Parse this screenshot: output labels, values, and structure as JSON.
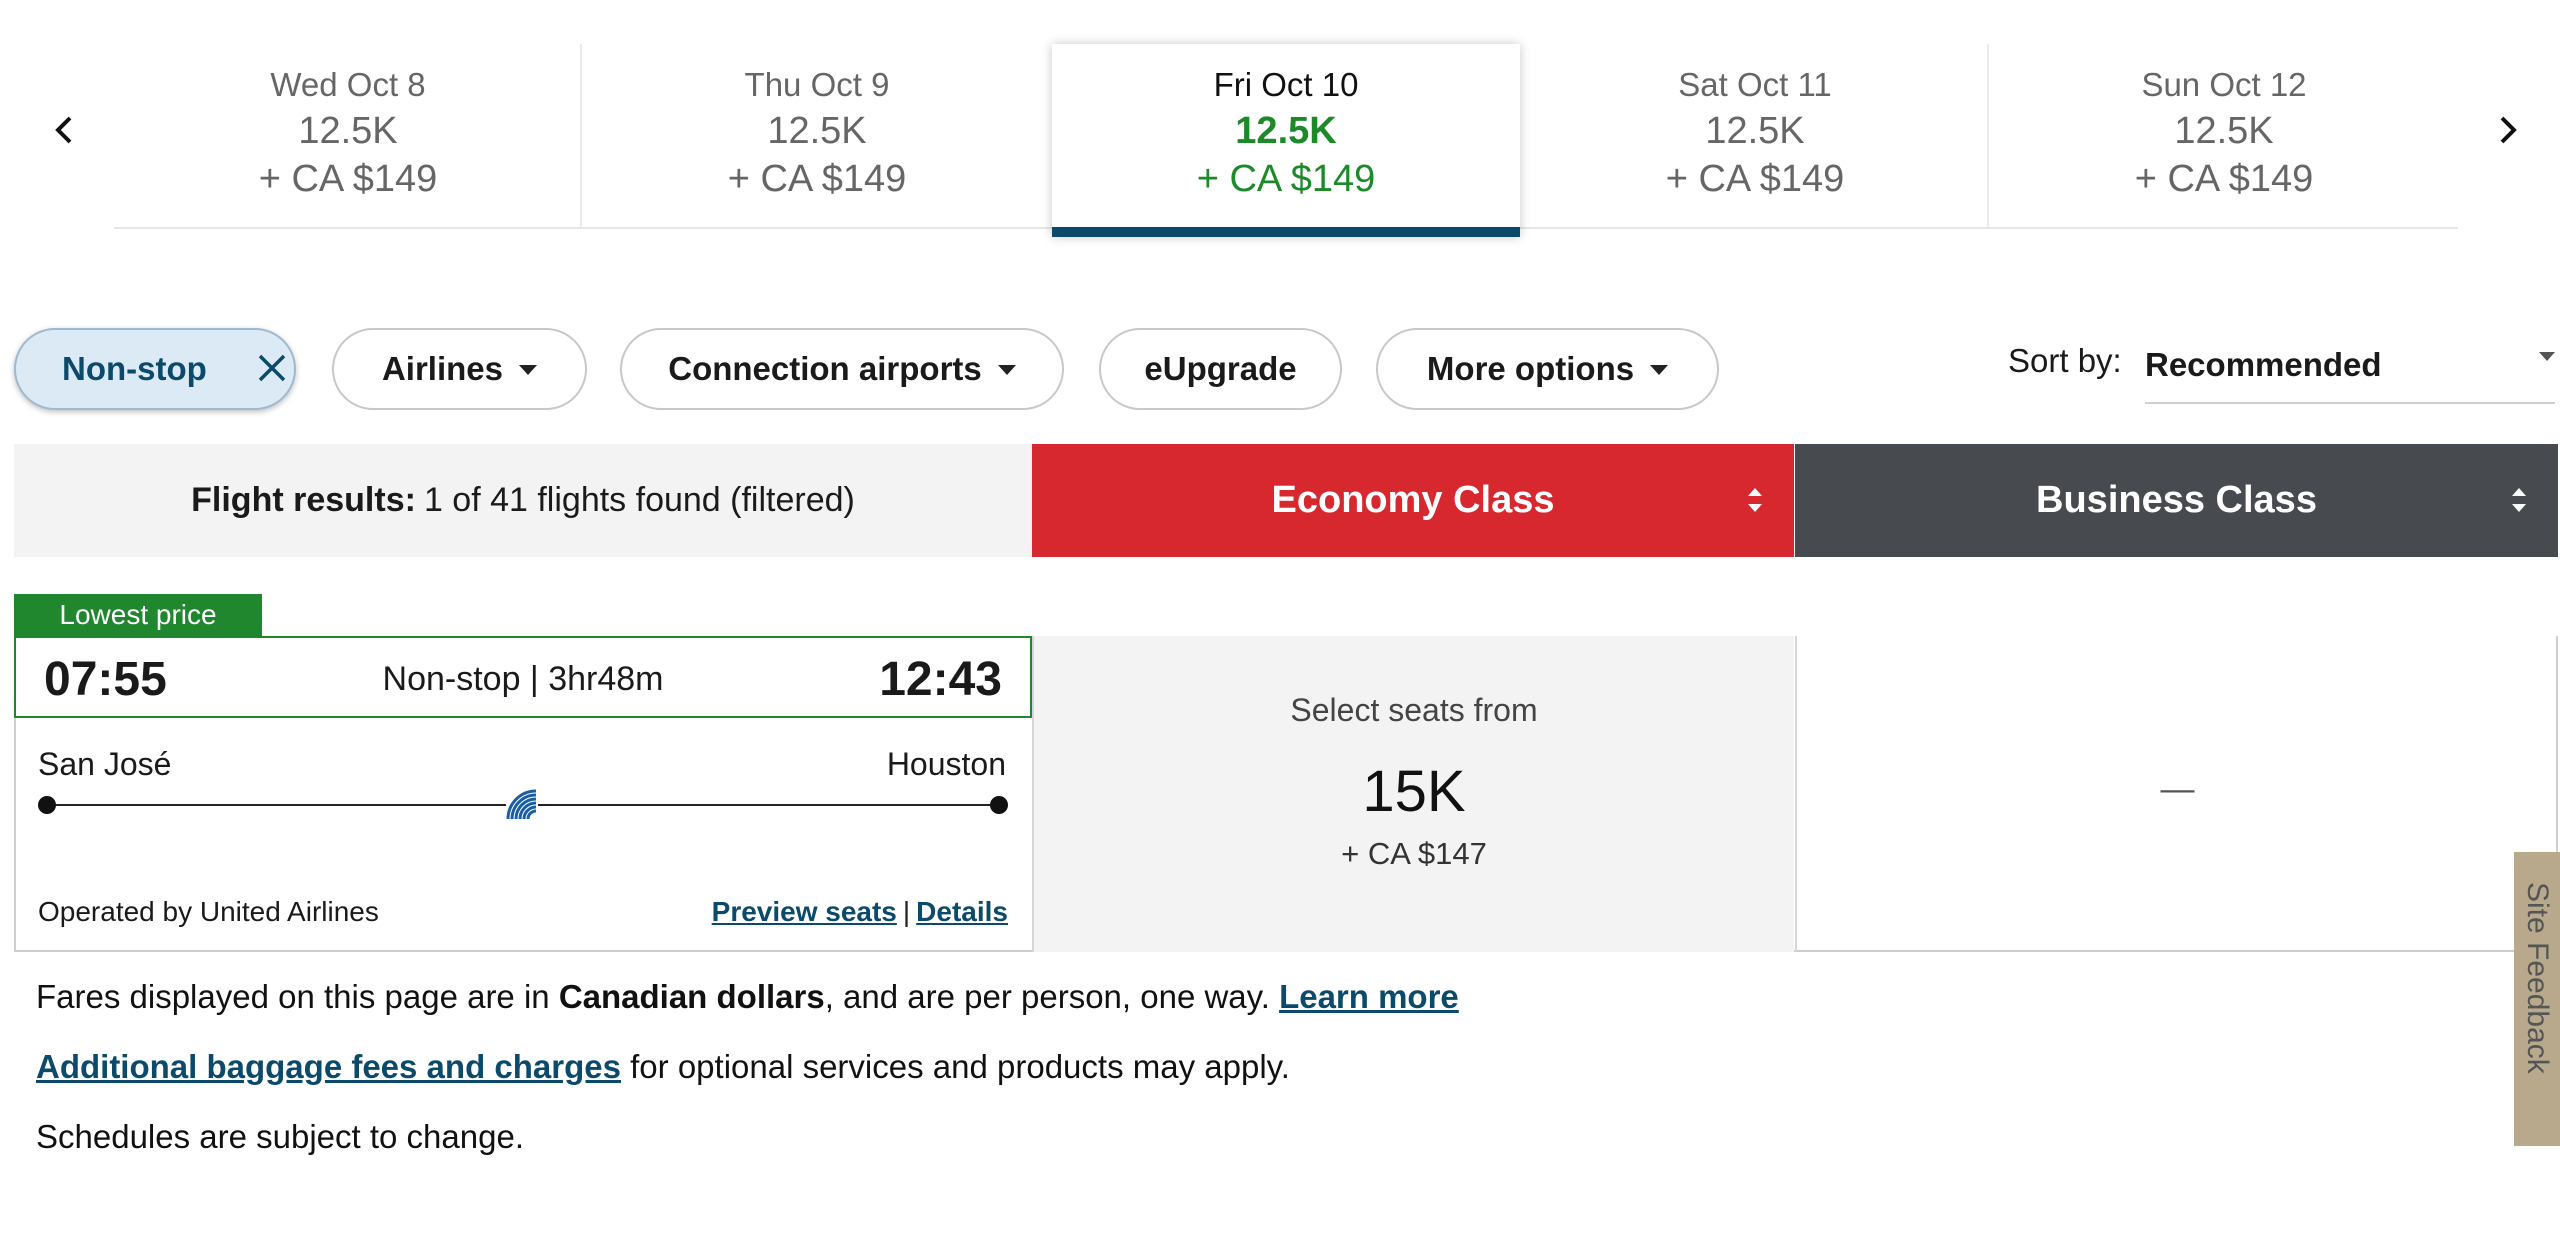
{
  "dates": [
    {
      "label": "Wed Oct 8",
      "miles": "12.5K",
      "price": "+ CA $149",
      "selected": false
    },
    {
      "label": "Thu Oct 9",
      "miles": "12.5K",
      "price": "+ CA $149",
      "selected": false
    },
    {
      "label": "Fri Oct 10",
      "miles": "12.5K",
      "price": "+ CA $149",
      "selected": true
    },
    {
      "label": "Sat Oct 11",
      "miles": "12.5K",
      "price": "+ CA $149",
      "selected": false
    },
    {
      "label": "Sun Oct 12",
      "miles": "12.5K",
      "price": "+ CA $149",
      "selected": false
    }
  ],
  "filters": {
    "nonstop": "Non-stop",
    "airlines": "Airlines",
    "connection_airports": "Connection airports",
    "eupgrade": "eUpgrade",
    "more_options": "More options"
  },
  "sort": {
    "label": "Sort by:",
    "value": "Recommended"
  },
  "results": {
    "label": "Flight results:",
    "summary": "1 of 41 flights found (filtered)"
  },
  "cabins": {
    "economy": "Economy Class",
    "business": "Business Class"
  },
  "flight": {
    "badge": "Lowest price",
    "depart_time": "07:55",
    "arrive_time": "12:43",
    "stops_duration": "Non-stop | 3hr48m",
    "origin": "San José",
    "destination": "Houston",
    "operated_by": "Operated by United Airlines",
    "preview_seats": "Preview seats",
    "details": "Details",
    "economy_label": "Select seats from",
    "economy_miles": "15K",
    "economy_price": "+ CA $147",
    "business_value": "—"
  },
  "notes": {
    "fares_prefix": "Fares displayed on this page are in ",
    "fares_bold": "Canadian dollars",
    "fares_suffix": ", and are per person, one way. ",
    "learn_more": "Learn more",
    "baggage_link": "Additional baggage fees and charges",
    "baggage_suffix": " for optional services and products may apply.",
    "schedules": "Schedules are subject to change."
  },
  "feedback": "Site Feedback",
  "colors": {
    "selected_green": "#1d8a2a",
    "navy": "#0b4a6b",
    "economy_red": "#d7282f",
    "business_gray": "#474a4f",
    "badge_green": "#21872f"
  },
  "icons": {
    "prev": "chevron-left-icon",
    "next": "chevron-right-icon",
    "close": "close-icon",
    "caret": "caret-down-icon",
    "sort_arrows": "sort-arrows-icon",
    "airline": "united-globe-icon"
  }
}
